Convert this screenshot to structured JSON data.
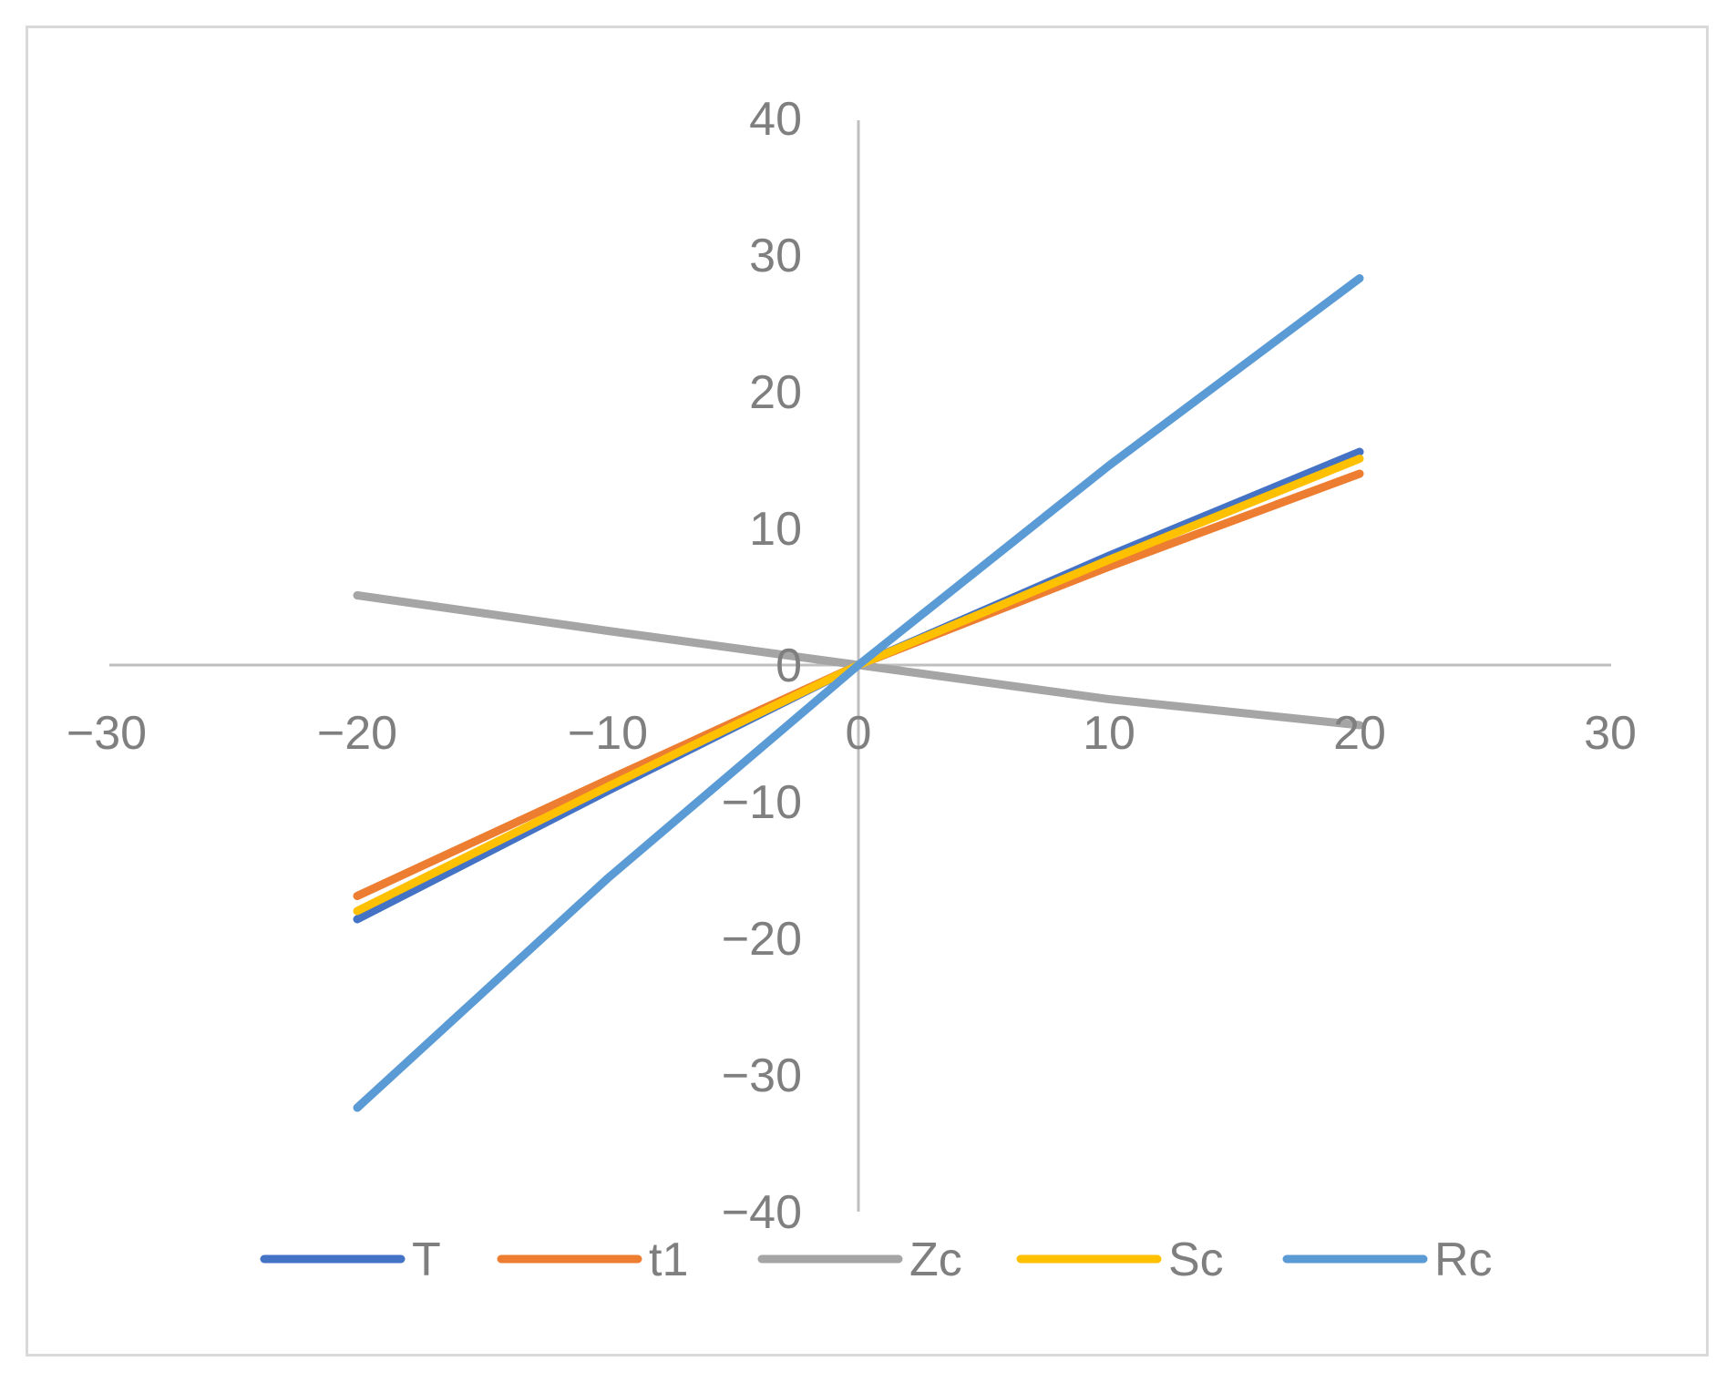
{
  "chart_data": {
    "type": "line",
    "title": "",
    "xlabel": "",
    "ylabel": "",
    "xlim": [
      -30,
      30
    ],
    "ylim": [
      -40,
      40
    ],
    "grid": false,
    "legend_position": "bottom",
    "x_ticks": [
      {
        "value": -30,
        "label": "−30"
      },
      {
        "value": -20,
        "label": "−20"
      },
      {
        "value": -10,
        "label": "−10"
      },
      {
        "value": 0,
        "label": "0"
      },
      {
        "value": 10,
        "label": "10"
      },
      {
        "value": 20,
        "label": "20"
      },
      {
        "value": 30,
        "label": "30"
      }
    ],
    "y_ticks": [
      {
        "value": 40,
        "label": "40"
      },
      {
        "value": 30,
        "label": "30"
      },
      {
        "value": 20,
        "label": "20"
      },
      {
        "value": 10,
        "label": "10"
      },
      {
        "value": 0,
        "label": "0"
      },
      {
        "value": -10,
        "label": "−10"
      },
      {
        "value": -20,
        "label": "−20"
      },
      {
        "value": -30,
        "label": "−30"
      },
      {
        "value": -40,
        "label": "−40"
      }
    ],
    "series": [
      {
        "name": "T",
        "color": "#4472c4",
        "x": [
          -20,
          -10,
          0,
          10,
          20
        ],
        "y": [
          -18.6,
          -9.2,
          0,
          8.0,
          15.6
        ]
      },
      {
        "name": "t1",
        "color": "#ed7d31",
        "x": [
          -20,
          -10,
          0,
          10,
          20
        ],
        "y": [
          -16.9,
          -8.4,
          0,
          7.2,
          14.0
        ]
      },
      {
        "name": "Zc",
        "color": "#a5a5a5",
        "x": [
          -20,
          -10,
          0,
          10,
          20
        ],
        "y": [
          5.1,
          2.5,
          0,
          -2.5,
          -4.4
        ]
      },
      {
        "name": "Sc",
        "color": "#ffc000",
        "x": [
          -20,
          -10,
          0,
          10,
          20
        ],
        "y": [
          -18.0,
          -8.9,
          0,
          7.7,
          15.1
        ]
      },
      {
        "name": "Rc",
        "color": "#5b9bd5",
        "x": [
          -20,
          -10,
          0,
          10,
          20
        ],
        "y": [
          -32.4,
          -15.6,
          0,
          14.6,
          28.3
        ]
      }
    ]
  }
}
